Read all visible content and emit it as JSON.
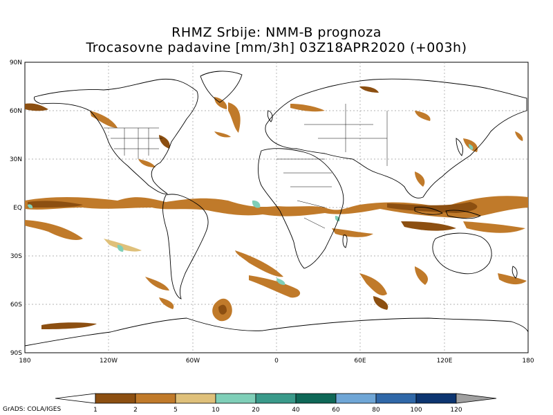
{
  "title_line1": "RHMZ Srbije: NMM-B prognoza",
  "title_line2": "Trocasovne padavine [mm/3h] 03Z18APR2020 (+003h)",
  "lat_ticks": [
    "90N",
    "60N",
    "30N",
    "EQ",
    "30S",
    "60S",
    "90S"
  ],
  "lon_ticks": [
    "180",
    "120W",
    "60W",
    "0",
    "60E",
    "120E",
    "180"
  ],
  "colorbar": {
    "ticks": [
      "1",
      "2",
      "5",
      "10",
      "20",
      "40",
      "60",
      "80",
      "100",
      "120"
    ],
    "colors": [
      "#8c4f11",
      "#c07a2a",
      "#dfc07a",
      "#7fcfb8",
      "#3a9a8a",
      "#0f6857",
      "#6fa6d6",
      "#3068a8",
      "#0d3570"
    ],
    "under_color": "#ffffff",
    "over_color": "#a0a0a0"
  },
  "credit": "GrADS: COLA/IGES",
  "colors": {
    "coast": "#000000",
    "grid": "#999999",
    "precip_light": "#c07a2a",
    "precip_moderate": "#dfc07a",
    "precip_heavy": "#8c4f11",
    "precip_extreme": "#7fcfb8"
  }
}
